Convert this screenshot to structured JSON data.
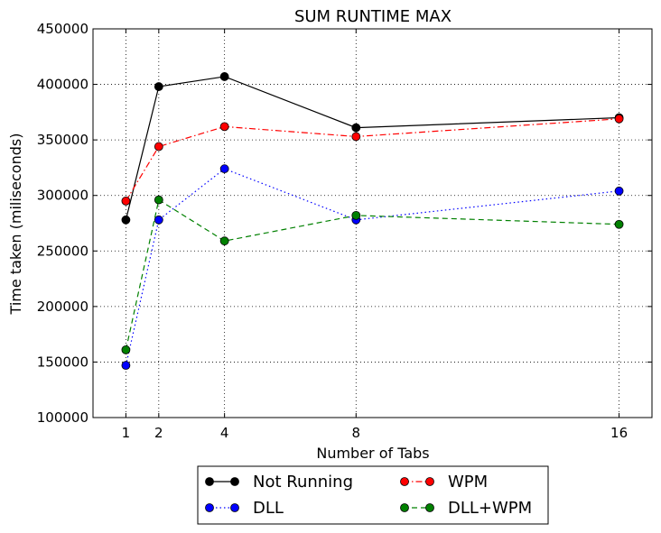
{
  "chart_data": {
    "type": "line",
    "title": "SUM RUNTIME MAX",
    "xlabel": "Number of Tabs",
    "ylabel": "Time taken (miliseconds)",
    "x": [
      1,
      2,
      4,
      8,
      16
    ],
    "xlim": [
      0,
      17
    ],
    "ylim": [
      100000,
      450000
    ],
    "xticks": [
      1,
      2,
      4,
      8,
      16
    ],
    "yticks": [
      100000,
      150000,
      200000,
      250000,
      300000,
      350000,
      400000,
      450000
    ],
    "grid": true,
    "legend_placement": "below",
    "series": [
      {
        "name": "Not Running",
        "color": "#000000",
        "linestyle": "solid",
        "values": [
          278000,
          398000,
          407000,
          361000,
          370000
        ]
      },
      {
        "name": "WPM",
        "color": "#ff0000",
        "linestyle": "dashdot",
        "values": [
          295000,
          344000,
          362000,
          353000,
          369000
        ]
      },
      {
        "name": "DLL",
        "color": "#0000ff",
        "linestyle": "dotted",
        "values": [
          147000,
          278000,
          324000,
          278000,
          304000
        ]
      },
      {
        "name": "DLL+WPM",
        "color": "#008000",
        "linestyle": "dashed",
        "values": [
          161000,
          296000,
          259000,
          282000,
          274000
        ]
      }
    ]
  }
}
